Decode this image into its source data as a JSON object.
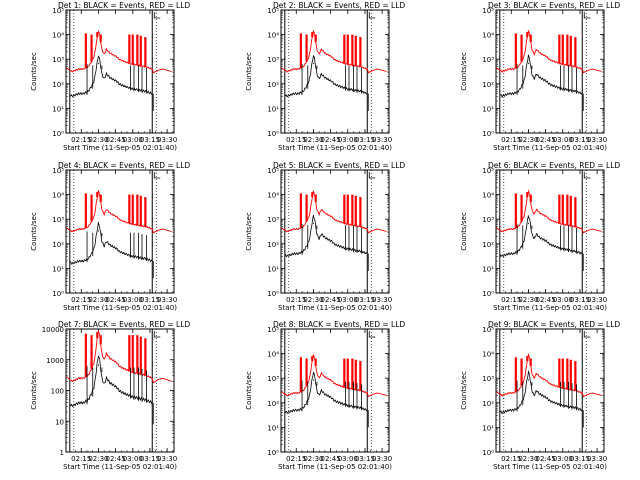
{
  "xlabel": "Start Time (11-Sep-05 02:01:40)",
  "ylabel": "Counts/sec",
  "x_ticks": [
    "02:15",
    "02:30",
    "02:45",
    "03:00",
    "03:15",
    "03:30"
  ],
  "x_tick_minutes": [
    15,
    30,
    45,
    60,
    75,
    90
  ],
  "x_range_minutes": [
    1.67,
    96
  ],
  "vlines_minutes": [
    5,
    77
  ],
  "series_colors": {
    "events": "#000000",
    "lld": "#ff0000"
  },
  "chart_data": [
    {
      "type": "line",
      "title": "Det 1: BLACK = Events, RED = LLD",
      "ylim": [
        1,
        100000
      ],
      "yscale": "log",
      "y_ticks": [
        "10⁰",
        "10¹",
        "10²",
        "10³",
        "10⁴",
        "10⁵"
      ],
      "red_offset": 1.0,
      "black_offset": 0.0
    },
    {
      "type": "line",
      "title": "Det 2: BLACK = Events, RED = LLD",
      "ylim": [
        1,
        100000
      ],
      "yscale": "log",
      "y_ticks": [
        "10⁰",
        "10¹",
        "10²",
        "10³",
        "10⁴",
        "10⁵"
      ],
      "red_offset": 1.0,
      "black_offset": 0.0
    },
    {
      "type": "line",
      "title": "Det 3: BLACK = Events, RED = LLD",
      "ylim": [
        1,
        100000
      ],
      "yscale": "log",
      "y_ticks": [
        "10⁰",
        "10¹",
        "10²",
        "10³",
        "10⁴",
        "10⁵"
      ],
      "red_offset": 1.0,
      "black_offset": 0.0
    },
    {
      "type": "line",
      "title": "Det 4: BLACK = Events, RED = LLD",
      "ylim": [
        1,
        100000
      ],
      "yscale": "log",
      "y_ticks": [
        "10⁰",
        "10¹",
        "10²",
        "10³",
        "10⁴",
        "10⁵"
      ],
      "red_offset": 1.0,
      "black_offset": -0.3
    },
    {
      "type": "line",
      "title": "Det 5: BLACK = Events, RED = LLD",
      "ylim": [
        1,
        100000
      ],
      "yscale": "log",
      "y_ticks": [
        "10⁰",
        "10¹",
        "10²",
        "10³",
        "10⁴",
        "10⁵"
      ],
      "red_offset": 1.0,
      "black_offset": 0.0
    },
    {
      "type": "line",
      "title": "Det 6: BLACK = Events, RED = LLD",
      "ylim": [
        1,
        100000
      ],
      "yscale": "log",
      "y_ticks": [
        "10⁰",
        "10¹",
        "10²",
        "10³",
        "10⁴",
        "10⁵"
      ],
      "red_offset": 1.0,
      "black_offset": 0.0
    },
    {
      "type": "line",
      "title": "Det 7: BLACK = Events, RED = LLD",
      "ylim": [
        1,
        10000
      ],
      "yscale": "log",
      "y_ticks": [
        "1",
        "10",
        "100",
        "1000",
        "10000"
      ],
      "red_offset": 0.8,
      "black_offset": 0.0
    },
    {
      "type": "line",
      "title": "Det 8: BLACK = Events, RED = LLD",
      "ylim": [
        1,
        100000
      ],
      "yscale": "log",
      "y_ticks": [
        "10⁰",
        "10¹",
        "10²",
        "10³",
        "10⁴",
        "10⁵"
      ],
      "red_offset": 0.8,
      "black_offset": 0.1
    },
    {
      "type": "line",
      "title": "Det 9: BLACK = Events, RED = LLD",
      "ylim": [
        1,
        100000
      ],
      "yscale": "log",
      "y_ticks": [
        "10⁰",
        "10¹",
        "10²",
        "10³",
        "10⁴",
        "10⁵"
      ],
      "red_offset": 0.8,
      "black_offset": 0.1
    }
  ],
  "profile": {
    "minutes": [
      5,
      7,
      10,
      13,
      15,
      17,
      19,
      20,
      22,
      24,
      25,
      26,
      27,
      28,
      29,
      30,
      31,
      32,
      33,
      34,
      35,
      36,
      37,
      38,
      40,
      42,
      44,
      46,
      48,
      50,
      53,
      56,
      59,
      62,
      65,
      68,
      71,
      74,
      77
    ],
    "log_events": [
      1.55,
      1.5,
      1.55,
      1.6,
      1.6,
      1.6,
      1.65,
      1.65,
      1.75,
      1.9,
      2.0,
      2.1,
      2.3,
      2.6,
      2.9,
      3.15,
      3.0,
      2.7,
      2.4,
      2.3,
      2.2,
      2.3,
      2.4,
      2.35,
      2.25,
      2.2,
      2.15,
      2.1,
      2.0,
      1.95,
      1.9,
      1.85,
      1.8,
      1.78,
      1.75,
      1.72,
      1.7,
      1.65,
      1.6
    ],
    "spike_minutes": [
      19,
      24,
      29,
      32,
      57,
      60,
      64,
      67,
      71
    ],
    "spike_peak_log": [
      4.05,
      4.0,
      4.1,
      4.0,
      4.0,
      4.0,
      4.0,
      3.95,
      3.9
    ],
    "red_after_minutes": [
      78,
      82,
      86,
      90,
      94
    ],
    "red_after_log": [
      2.45,
      2.55,
      2.6,
      2.55,
      2.5
    ]
  }
}
